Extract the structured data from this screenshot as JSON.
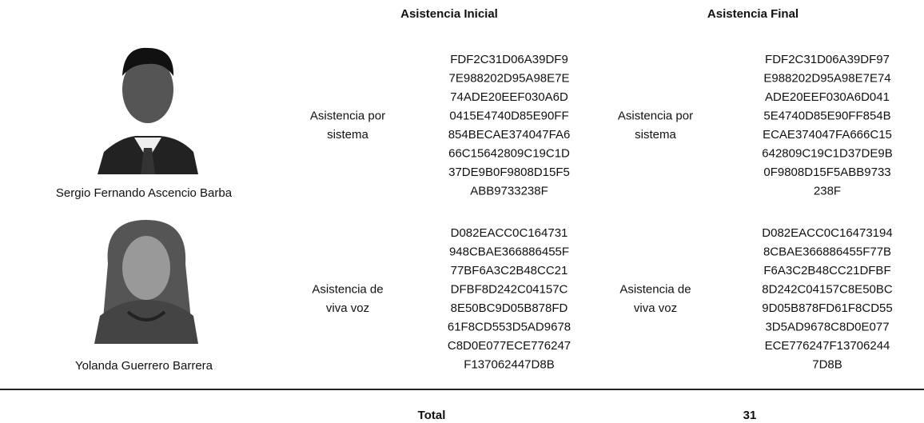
{
  "header": {
    "col_initial": "Asistencia Inicial",
    "col_final": "Asistencia Final"
  },
  "rows": [
    {
      "name": "Sergio Fernando Ascencio Barba",
      "initial_method": [
        "Asistencia por",
        "sistema"
      ],
      "initial_hash": [
        "FDF2C31D06A39DF9",
        "7E988202D95A98E7E",
        "74ADE20EEF030A6D",
        "0415E4740D85E90FF",
        "854BECAE374047FA6",
        "66C15642809C19C1D",
        "37DE9B0F9808D15F5",
        "ABB9733238F"
      ],
      "final_method": [
        "Asistencia por",
        "sistema"
      ],
      "final_hash": [
        "FDF2C31D06A39DF97",
        "E988202D95A98E7E74",
        "ADE20EEF030A6D041",
        "5E4740D85E90FF854B",
        "ECAE374047FA666C15",
        "642809C19C1D37DE9B",
        "0F9808D15F5ABB9733",
        "238F"
      ]
    },
    {
      "name": "Yolanda Guerrero Barrera",
      "initial_method": [
        "Asistencia de",
        "viva voz"
      ],
      "initial_hash": [
        "D082EACC0C164731",
        "948CBAE366886455F",
        "77BF6A3C2B48CC21",
        "DFBF8D242C04157C",
        "8E50BC9D05B878FD",
        "61F8CD553D5AD9678",
        "C8D0E077ECE776247",
        "F137062447D8B"
      ],
      "final_method": [
        "Asistencia de",
        "viva voz"
      ],
      "final_hash": [
        "D082EACC0C16473194",
        "8CBAE366886455F77B",
        "F6A3C2B48CC21DFBF",
        "8D242C04157C8E50BC",
        "9D05B878FD61F8CD55",
        "3D5AD9678C8D0E077",
        "ECE776247F13706244",
        "7D8B"
      ]
    }
  ],
  "total": {
    "label": "Total",
    "value": 31
  }
}
